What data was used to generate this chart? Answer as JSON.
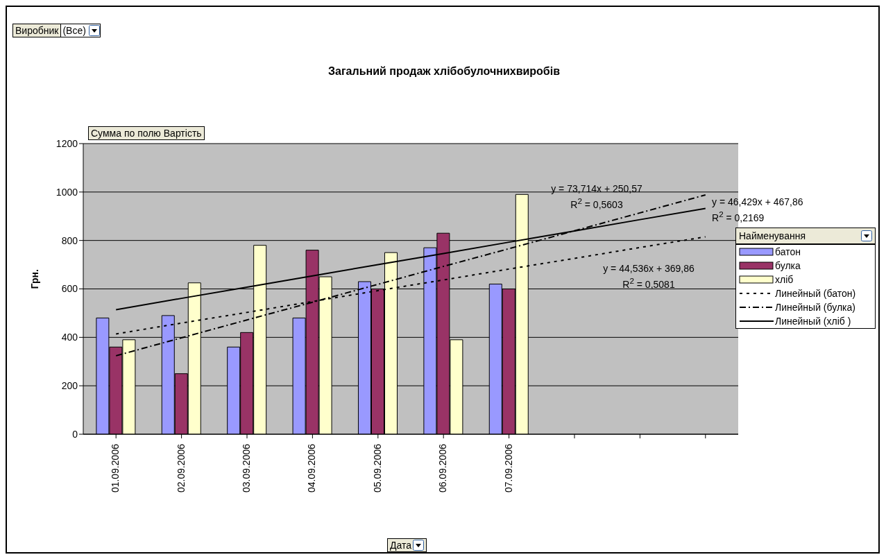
{
  "chart_data": {
    "type": "bar",
    "title": "Загальний продаж хлібобулочнихвиробів",
    "xlabel": "Дата",
    "ylabel": "Грн.",
    "legend_title": "Найменування",
    "categories": [
      "01.09.2006",
      "02.09.2006",
      "03.09.2006",
      "04.09.2006",
      "05.09.2006",
      "06.09.2006",
      "07.09.2006",
      null,
      null,
      null
    ],
    "series": [
      {
        "name": "батон",
        "color": "#9999ff",
        "values": [
          480,
          490,
          360,
          480,
          630,
          770,
          620,
          null,
          null,
          null
        ]
      },
      {
        "name": "булка",
        "color": "#993366",
        "values": [
          360,
          250,
          420,
          760,
          600,
          830,
          600,
          null,
          null,
          null
        ]
      },
      {
        "name": "хліб",
        "color": "#ffffcc",
        "values": [
          390,
          625,
          780,
          650,
          750,
          390,
          990,
          null,
          null,
          null
        ]
      },
      {
        "name": "Линейный (батон)",
        "type": "line",
        "color": "#000000",
        "line_style": "dotted",
        "values": [
          414,
          459,
          503,
          548,
          593,
          637,
          682,
          726,
          771,
          815
        ]
      },
      {
        "name": "Линейный (булка)",
        "type": "line",
        "color": "#000000",
        "line_style": "dashed",
        "values": [
          324,
          398,
          472,
          545,
          619,
          693,
          766,
          840,
          914,
          988
        ]
      },
      {
        "name": "Линейный (хліб )",
        "type": "line",
        "color": "#000000",
        "line_style": "solid",
        "values": [
          514,
          561,
          607,
          654,
          700,
          746,
          793,
          839,
          886,
          932
        ]
      }
    ],
    "ylim": [
      0,
      1200
    ],
    "yticks": [
      0,
      200,
      400,
      600,
      800,
      1000,
      1200
    ],
    "grid": "y",
    "legend": "right",
    "marker": "none",
    "annotations": [
      "Виробник",
      "(Все)",
      "Сумма по полю Вартість",
      "y = 73,714x + 250,57\nR$^{2}$ = 0,5603",
      "y = 46,429x + 467,86\nR$^{2}$ = 0,2169",
      "y = 44,536x + 369,86\nR$^{2}$ = 0,5081"
    ]
  }
}
